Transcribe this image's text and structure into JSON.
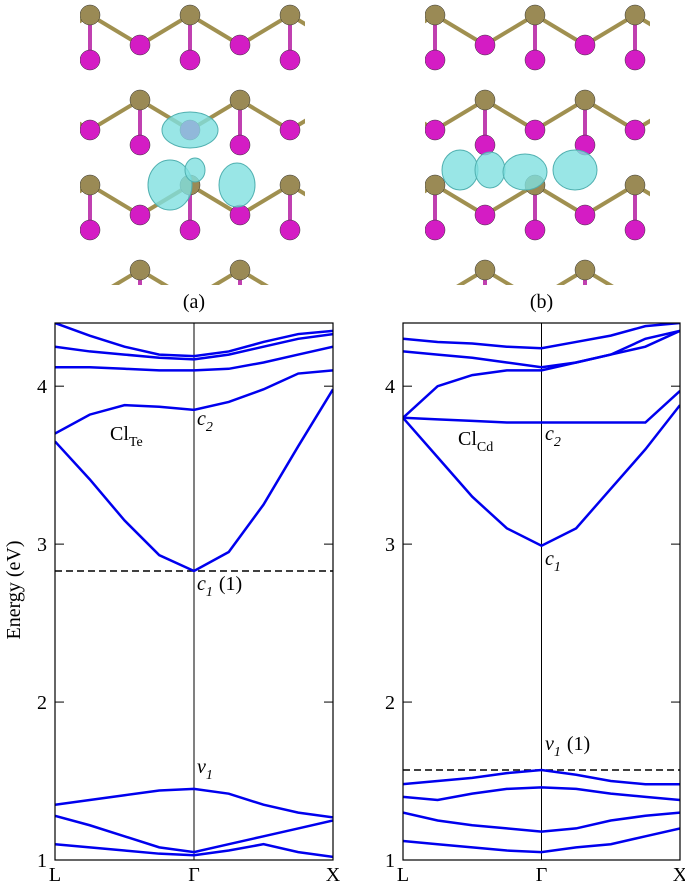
{
  "chart_data": [
    {
      "type": "line",
      "label": "(a)",
      "ylabel": "Energy (eV)",
      "color": "#0000ee",
      "x": [
        0,
        0.25,
        0.5,
        0.75,
        1,
        1.25,
        1.5,
        1.75,
        2
      ],
      "xlim": [
        0,
        2
      ],
      "xticks": [
        {
          "value": 0,
          "label": "L"
        },
        {
          "value": 1,
          "label": "Γ"
        },
        {
          "value": 2,
          "label": "X"
        }
      ],
      "ylim": [
        1,
        4.4
      ],
      "yticks": [
        1,
        2,
        3,
        4
      ],
      "hline": 2.83,
      "annotations": [
        {
          "text": "Cl",
          "sub": "Te"
        },
        {
          "text": "c",
          "sub": "2"
        },
        {
          "text": "c",
          "sub": "1",
          "suffix": "(1)"
        },
        {
          "text": "v",
          "sub": "1"
        }
      ],
      "series": [
        {
          "values": [
            3.65,
            3.41,
            3.15,
            2.93,
            2.83,
            2.95,
            3.25,
            3.62,
            3.98
          ]
        },
        {
          "values": [
            3.7,
            3.82,
            3.88,
            3.87,
            3.85,
            3.9,
            3.98,
            4.08,
            4.1
          ]
        },
        {
          "values": [
            4.12,
            4.12,
            4.11,
            4.1,
            4.1,
            4.11,
            4.15,
            4.2,
            4.25
          ]
        },
        {
          "values": [
            4.25,
            4.22,
            4.2,
            4.18,
            4.17,
            4.2,
            4.25,
            4.3,
            4.33
          ]
        },
        {
          "values": [
            4.4,
            4.32,
            4.25,
            4.2,
            4.19,
            4.22,
            4.28,
            4.33,
            4.35
          ]
        },
        {
          "values": [
            1.35,
            1.38,
            1.41,
            1.44,
            1.45,
            1.42,
            1.35,
            1.3,
            1.27
          ]
        },
        {
          "values": [
            1.28,
            1.22,
            1.15,
            1.08,
            1.05,
            1.1,
            1.15,
            1.2,
            1.25
          ]
        },
        {
          "values": [
            1.1,
            1.08,
            1.06,
            1.04,
            1.03,
            1.06,
            1.1,
            1.05,
            1.02
          ]
        }
      ]
    },
    {
      "type": "line",
      "label": "(b)",
      "color": "#0000ee",
      "x": [
        0,
        0.25,
        0.5,
        0.75,
        1,
        1.25,
        1.5,
        1.75,
        2
      ],
      "xlim": [
        0,
        2
      ],
      "xticks": [
        {
          "value": 0,
          "label": "L"
        },
        {
          "value": 1,
          "label": "Γ"
        },
        {
          "value": 2,
          "label": "X"
        }
      ],
      "ylim": [
        1,
        4.4
      ],
      "yticks": [
        1,
        2,
        3,
        4
      ],
      "hline": 1.57,
      "annotations": [
        {
          "text": "Cl",
          "sub": "Cd"
        },
        {
          "text": "c",
          "sub": "2"
        },
        {
          "text": "c",
          "sub": "1"
        },
        {
          "text": "v",
          "sub": "1",
          "suffix": "(1)"
        }
      ],
      "series": [
        {
          "values": [
            3.8,
            3.55,
            3.3,
            3.1,
            2.99,
            3.1,
            3.35,
            3.6,
            3.88
          ]
        },
        {
          "values": [
            3.8,
            3.79,
            3.78,
            3.77,
            3.77,
            3.77,
            3.77,
            3.77,
            3.97
          ]
        },
        {
          "values": [
            3.8,
            4.0,
            4.07,
            4.1,
            4.1,
            4.15,
            4.2,
            4.3,
            4.35
          ]
        },
        {
          "values": [
            4.22,
            4.2,
            4.18,
            4.15,
            4.12,
            4.15,
            4.2,
            4.25,
            4.35
          ]
        },
        {
          "values": [
            4.3,
            4.28,
            4.27,
            4.25,
            4.24,
            4.28,
            4.32,
            4.38,
            4.4
          ]
        },
        {
          "values": [
            1.48,
            1.5,
            1.52,
            1.55,
            1.57,
            1.54,
            1.5,
            1.48,
            1.48
          ]
        },
        {
          "values": [
            1.4,
            1.38,
            1.42,
            1.45,
            1.46,
            1.45,
            1.42,
            1.4,
            1.38
          ]
        },
        {
          "values": [
            1.3,
            1.25,
            1.22,
            1.2,
            1.18,
            1.2,
            1.25,
            1.28,
            1.3
          ]
        },
        {
          "values": [
            1.12,
            1.1,
            1.08,
            1.06,
            1.05,
            1.08,
            1.1,
            1.15,
            1.2
          ]
        }
      ]
    }
  ]
}
